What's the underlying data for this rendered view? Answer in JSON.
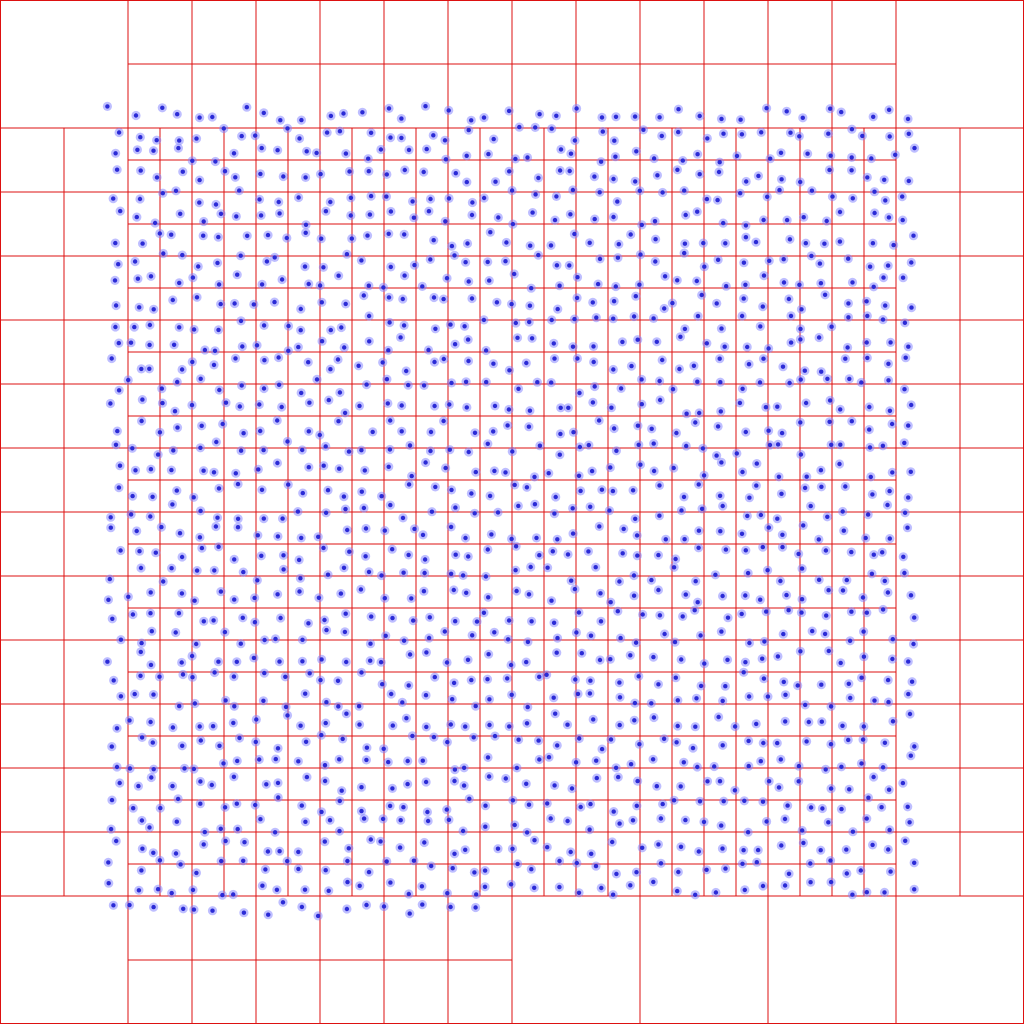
{
  "diagram": {
    "type": "adaptive-quadtree",
    "max_points_per_leaf": 4,
    "max_depth": 5
  },
  "colors": {
    "background": "#ffffff",
    "grid_line": "#dd1111",
    "point_core": "#2b2bd6",
    "point_halo": "#7d7dff"
  },
  "points": {
    "count": 1500,
    "distribution": "uniform-random",
    "seed": 12345
  }
}
